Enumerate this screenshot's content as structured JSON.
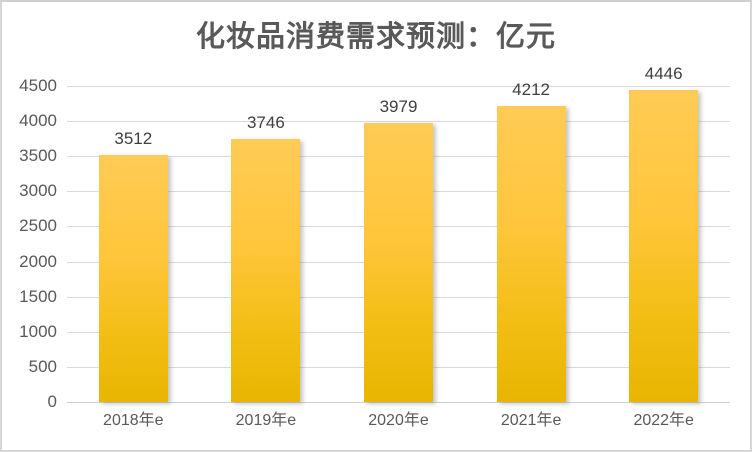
{
  "chart_data": {
    "type": "bar",
    "title": "化妆品消费需求预测：亿元",
    "categories": [
      "2018年e",
      "2019年e",
      "2020年e",
      "2021年e",
      "2022年e"
    ],
    "values": [
      3512,
      3746,
      3979,
      4212,
      4446
    ],
    "xlabel": "",
    "ylabel": "",
    "ylim": [
      0,
      4500
    ],
    "ytick_step": 500,
    "grid": true,
    "legend": "none",
    "colors": {
      "bar_top": "#FFCA52",
      "bar_bottom": "#E8B502",
      "gridline": "#D9D9D9",
      "title_text": "#595959",
      "axis_text": "#595959",
      "data_label_text": "#404040",
      "background": "#FFFFFF",
      "frame_border": "#D6D6D6"
    }
  }
}
